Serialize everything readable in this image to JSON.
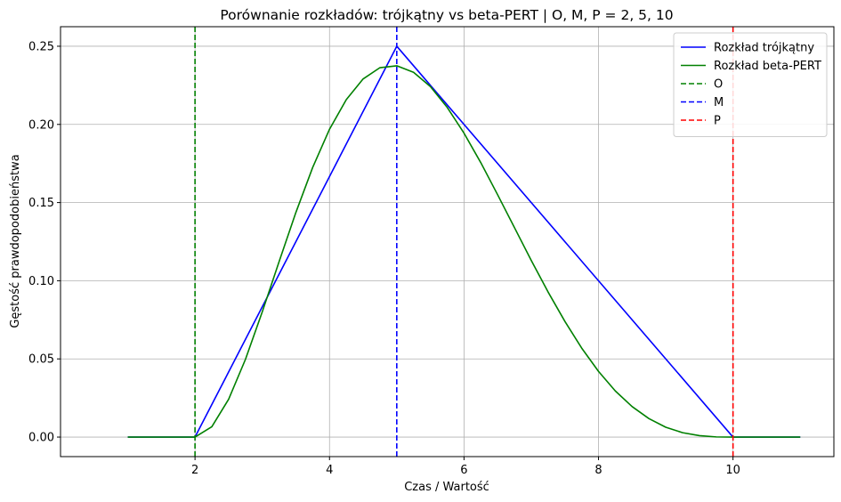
{
  "chart_data": {
    "type": "line",
    "title": "Porównanie rozkładów: trójkątny vs beta-PERT | O, M, P = 2, 5, 10",
    "xlabel": "Czas / Wartość",
    "ylabel": "Gęstość prawdopodobieństwa",
    "xlim": [
      0,
      11.5
    ],
    "ylim": [
      -0.0125,
      0.2625
    ],
    "xticks": [
      2,
      4,
      6,
      8,
      10
    ],
    "xtick_labels": [
      "2",
      "4",
      "6",
      "8",
      "10"
    ],
    "yticks": [
      0.0,
      0.05,
      0.1,
      0.15,
      0.2,
      0.25
    ],
    "ytick_labels": [
      "0.00",
      "0.05",
      "0.10",
      "0.15",
      "0.20",
      "0.25"
    ],
    "grid": true,
    "legend_position": "top-right",
    "params": {
      "O": 2,
      "M": 5,
      "P": 10
    },
    "series": [
      {
        "name": "Rozkład trójkątny",
        "color": "#0000ff",
        "style": "solid",
        "x": [
          1,
          2,
          5,
          10,
          11
        ],
        "y": [
          0,
          0,
          0.25,
          0,
          0
        ]
      },
      {
        "name": "Rozkład beta-PERT",
        "color": "#008000",
        "style": "solid",
        "x": [
          1,
          2,
          2.25,
          2.5,
          2.75,
          3,
          3.25,
          3.5,
          3.75,
          4,
          4.25,
          4.5,
          4.75,
          5,
          5.25,
          5.5,
          5.75,
          6,
          6.25,
          6.5,
          6.75,
          7,
          7.25,
          7.5,
          7.75,
          8,
          8.25,
          8.5,
          8.75,
          9,
          9.25,
          9.5,
          9.75,
          10,
          11
        ],
        "y": [
          0,
          0,
          0.0066,
          0.0242,
          0.0497,
          0.0801,
          0.1122,
          0.1437,
          0.1725,
          0.1969,
          0.2159,
          0.2291,
          0.2363,
          0.2375,
          0.2333,
          0.2242,
          0.2109,
          0.1944,
          0.1755,
          0.155,
          0.134,
          0.113,
          0.0928,
          0.074,
          0.0569,
          0.042,
          0.0295,
          0.0195,
          0.0118,
          0.0063,
          0.0028,
          0.0009,
          0.0001,
          0,
          0
        ]
      }
    ],
    "vlines": [
      {
        "name": "O",
        "x": 2,
        "color": "#008000",
        "style": "dashed"
      },
      {
        "name": "M",
        "x": 5,
        "color": "#0000ff",
        "style": "dashed"
      },
      {
        "name": "P",
        "x": 10,
        "color": "#ff0000",
        "style": "dashed"
      }
    ]
  }
}
